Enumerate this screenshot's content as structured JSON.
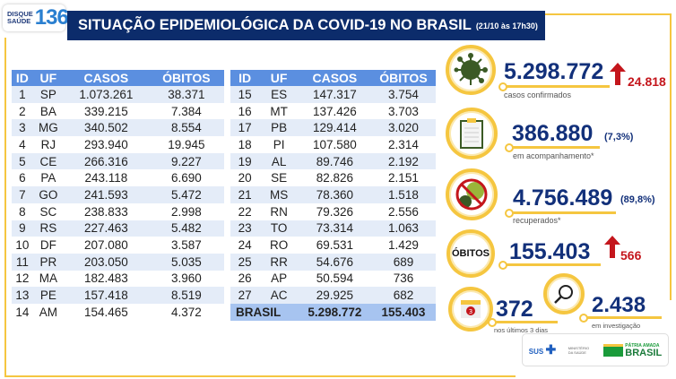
{
  "header": {
    "logo_line1": "DISQUE",
    "logo_line2": "SAÚDE",
    "logo_number": "136",
    "title": "SITUAÇÃO EPIDEMIOLÓGICA DA COVID-19 NO BRASIL",
    "timestamp": "(21/10 às 17h30)"
  },
  "table": {
    "columns": [
      "ID",
      "UF",
      "CASOS",
      "ÓBITOS"
    ],
    "left": [
      [
        "1",
        "SP",
        "1.073.261",
        "38.371"
      ],
      [
        "2",
        "BA",
        "339.215",
        "7.384"
      ],
      [
        "3",
        "MG",
        "340.502",
        "8.554"
      ],
      [
        "4",
        "RJ",
        "293.940",
        "19.945"
      ],
      [
        "5",
        "CE",
        "266.316",
        "9.227"
      ],
      [
        "6",
        "PA",
        "243.118",
        "6.690"
      ],
      [
        "7",
        "GO",
        "241.593",
        "5.472"
      ],
      [
        "8",
        "SC",
        "238.833",
        "2.998"
      ],
      [
        "9",
        "RS",
        "227.463",
        "5.482"
      ],
      [
        "10",
        "DF",
        "207.080",
        "3.587"
      ],
      [
        "11",
        "PR",
        "203.050",
        "5.035"
      ],
      [
        "12",
        "MA",
        "182.483",
        "3.960"
      ],
      [
        "13",
        "PE",
        "157.418",
        "8.519"
      ],
      [
        "14",
        "AM",
        "154.465",
        "4.372"
      ]
    ],
    "right": [
      [
        "15",
        "ES",
        "147.317",
        "3.754"
      ],
      [
        "16",
        "MT",
        "137.426",
        "3.703"
      ],
      [
        "17",
        "PB",
        "129.414",
        "3.020"
      ],
      [
        "18",
        "PI",
        "107.580",
        "2.314"
      ],
      [
        "19",
        "AL",
        "89.746",
        "2.192"
      ],
      [
        "20",
        "SE",
        "82.826",
        "2.151"
      ],
      [
        "21",
        "MS",
        "78.360",
        "1.518"
      ],
      [
        "22",
        "RN",
        "79.326",
        "2.556"
      ],
      [
        "23",
        "TO",
        "73.314",
        "1.063"
      ],
      [
        "24",
        "RO",
        "69.531",
        "1.429"
      ],
      [
        "25",
        "RR",
        "54.676",
        "689"
      ],
      [
        "26",
        "AP",
        "50.594",
        "736"
      ],
      [
        "27",
        "AC",
        "29.925",
        "682"
      ]
    ],
    "total": {
      "label": "BRASIL",
      "casos": "5.298.772",
      "obitos": "155.403"
    }
  },
  "stats": {
    "confirmed": {
      "value": "5.298.772",
      "delta": "24.818",
      "label": "casos confirmados"
    },
    "monitoring": {
      "value": "386.880",
      "pct": "(7,3%)",
      "label": "em acompanhamento*"
    },
    "recovered": {
      "value": "4.756.489",
      "pct": "(89,8%)",
      "label": "recuperados*"
    },
    "deaths": {
      "badge": "ÓBITOS",
      "value": "155.403",
      "delta": "566"
    },
    "recent": {
      "value": "372",
      "label": "nos últimos 3 dias",
      "calendar_day": "3"
    },
    "investigation": {
      "value": "2.438",
      "label": "em investigação"
    }
  },
  "footer": {
    "sus": "SUS",
    "ministry": "MINISTÉRIO DA SAÚDE",
    "slogan": "PÁTRIA AMADA",
    "brasil": "BRASIL"
  },
  "colors": {
    "navy": "#0c2c6b",
    "accent_yellow": "#f5c640",
    "red": "#c4161c",
    "table_header": "#5b8fe0"
  }
}
